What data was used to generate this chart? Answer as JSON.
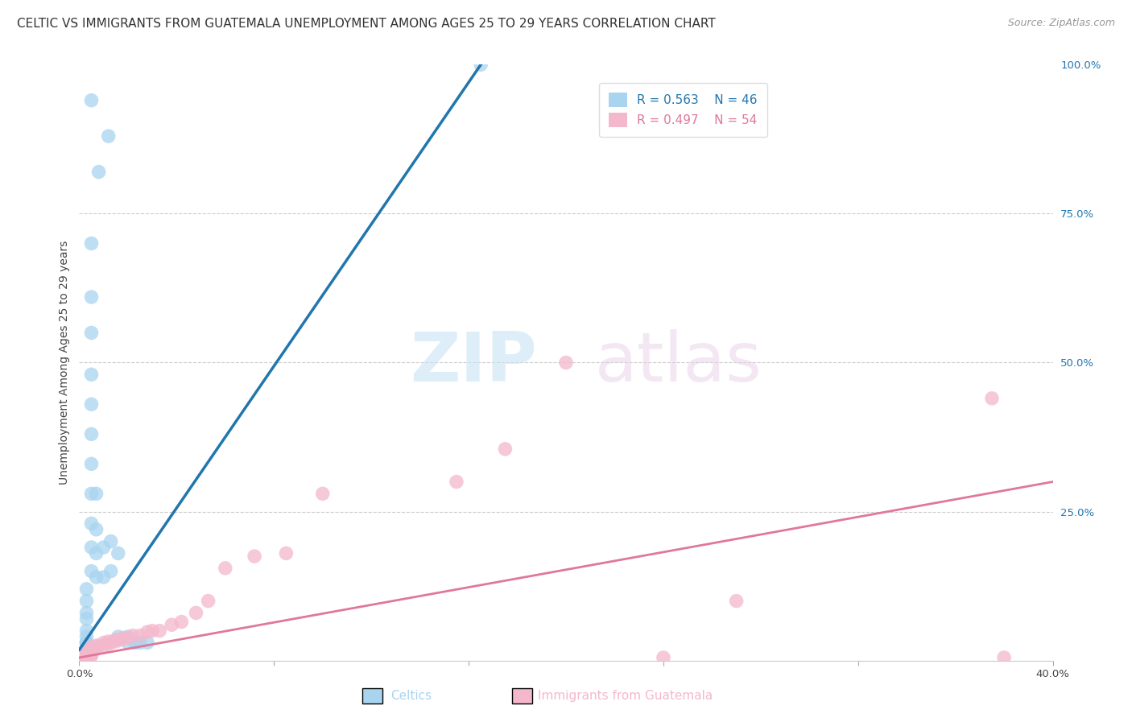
{
  "title": "CELTIC VS IMMIGRANTS FROM GUATEMALA UNEMPLOYMENT AMONG AGES 25 TO 29 YEARS CORRELATION CHART",
  "source": "Source: ZipAtlas.com",
  "ylabel": "Unemployment Among Ages 25 to 29 years",
  "xmin": 0.0,
  "xmax": 0.4,
  "ymin": 0.0,
  "ymax": 1.0,
  "celtics_color": "#a8d4f0",
  "celtics_line_color": "#2176ae",
  "guatemala_color": "#f4b8cc",
  "guatemala_line_color": "#e07898",
  "legend_R1": "R = 0.563",
  "legend_N1": "N = 46",
  "legend_R2": "R = 0.497",
  "legend_N2": "N = 54",
  "watermark_zip": "ZIP",
  "watermark_atlas": "atlas",
  "celtics_x": [
    0.005,
    0.012,
    0.008,
    0.005,
    0.005,
    0.005,
    0.005,
    0.005,
    0.005,
    0.005,
    0.005,
    0.005,
    0.005,
    0.005,
    0.003,
    0.003,
    0.003,
    0.003,
    0.003,
    0.003,
    0.003,
    0.003,
    0.003,
    0.007,
    0.007,
    0.007,
    0.007,
    0.01,
    0.01,
    0.013,
    0.013,
    0.016,
    0.016,
    0.02,
    0.02,
    0.023,
    0.025,
    0.028,
    0.003,
    0.003,
    0.003,
    0.003,
    0.003,
    0.165,
    0.003,
    0.003
  ],
  "celtics_y": [
    0.94,
    0.88,
    0.82,
    0.7,
    0.61,
    0.55,
    0.48,
    0.43,
    0.38,
    0.33,
    0.28,
    0.23,
    0.19,
    0.15,
    0.12,
    0.1,
    0.08,
    0.07,
    0.05,
    0.04,
    0.03,
    0.03,
    0.02,
    0.28,
    0.22,
    0.18,
    0.14,
    0.19,
    0.14,
    0.2,
    0.15,
    0.18,
    0.04,
    0.04,
    0.03,
    0.03,
    0.03,
    0.03,
    0.03,
    0.02,
    0.02,
    0.02,
    0.01,
    1.0,
    0.005,
    0.005
  ],
  "guatemala_x": [
    0.003,
    0.003,
    0.003,
    0.003,
    0.003,
    0.003,
    0.003,
    0.003,
    0.003,
    0.003,
    0.003,
    0.003,
    0.003,
    0.005,
    0.005,
    0.005,
    0.005,
    0.005,
    0.005,
    0.005,
    0.007,
    0.007,
    0.007,
    0.008,
    0.01,
    0.01,
    0.012,
    0.012,
    0.013,
    0.015,
    0.015,
    0.017,
    0.018,
    0.02,
    0.022,
    0.025,
    0.028,
    0.03,
    0.033,
    0.038,
    0.042,
    0.048,
    0.053,
    0.06,
    0.072,
    0.085,
    0.1,
    0.155,
    0.175,
    0.2,
    0.24,
    0.27,
    0.375,
    0.38
  ],
  "guatemala_y": [
    0.003,
    0.003,
    0.003,
    0.003,
    0.003,
    0.003,
    0.003,
    0.003,
    0.003,
    0.005,
    0.008,
    0.01,
    0.012,
    0.008,
    0.01,
    0.012,
    0.015,
    0.018,
    0.02,
    0.022,
    0.02,
    0.022,
    0.025,
    0.025,
    0.025,
    0.03,
    0.028,
    0.032,
    0.03,
    0.032,
    0.035,
    0.035,
    0.038,
    0.038,
    0.042,
    0.042,
    0.048,
    0.05,
    0.05,
    0.06,
    0.065,
    0.08,
    0.1,
    0.155,
    0.175,
    0.18,
    0.28,
    0.3,
    0.355,
    0.5,
    0.005,
    0.1,
    0.44,
    0.005
  ],
  "celtics_line_x0": 0.0,
  "celtics_line_y0": 0.018,
  "celtics_line_x1": 0.165,
  "celtics_line_y1": 1.0,
  "guatemala_line_x0": 0.0,
  "guatemala_line_y0": 0.005,
  "guatemala_line_x1": 0.4,
  "guatemala_line_y1": 0.3,
  "title_fontsize": 11,
  "source_fontsize": 9,
  "label_fontsize": 10,
  "tick_fontsize": 9.5,
  "legend_fontsize": 11
}
